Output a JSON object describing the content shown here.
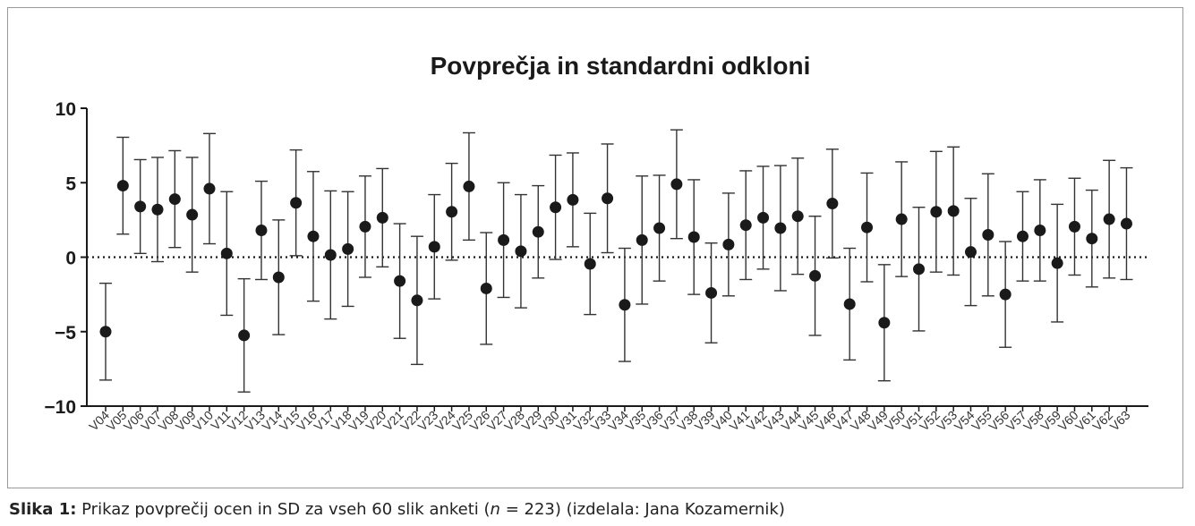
{
  "chart_data": {
    "type": "scatter",
    "subtype": "mean-with-error-bars",
    "title": "Povprečja in standardni odkloni",
    "xlabel": "",
    "ylabel": "",
    "ylim": [
      -10,
      10
    ],
    "yticks": [
      -10,
      -5,
      0,
      5,
      10
    ],
    "ytick_labels": [
      "−10",
      "−5",
      "0",
      "5",
      "10"
    ],
    "reference_line": {
      "y": 0,
      "style": "dotted"
    },
    "grid": false,
    "categories": [
      "V04",
      "V05",
      "V06",
      "V07",
      "V08",
      "V09",
      "V10",
      "V11",
      "V12",
      "V13",
      "V14",
      "V15",
      "V16",
      "V17",
      "V18",
      "V19",
      "V20",
      "V21",
      "V22",
      "V23",
      "V24",
      "V25",
      "V26",
      "V27",
      "V28",
      "V29",
      "V30",
      "V31",
      "V32",
      "V33",
      "V34",
      "V35",
      "V36",
      "V37",
      "V38",
      "V39",
      "V40",
      "V41",
      "V42",
      "V43",
      "V44",
      "V45",
      "V46",
      "V47",
      "V48",
      "V49",
      "V50",
      "V51",
      "V52",
      "V53",
      "V54",
      "V55",
      "V56",
      "V57",
      "V58",
      "V59",
      "V60",
      "V61",
      "V62",
      "V63"
    ],
    "means": [
      -5.0,
      4.8,
      3.4,
      3.2,
      3.9,
      2.85,
      4.6,
      0.25,
      -5.25,
      1.8,
      -1.35,
      3.65,
      1.4,
      0.15,
      0.55,
      2.05,
      2.65,
      -1.6,
      -2.9,
      0.7,
      3.05,
      4.75,
      -2.1,
      1.15,
      0.4,
      1.7,
      3.35,
      3.85,
      -0.45,
      3.95,
      -3.2,
      1.15,
      1.95,
      4.9,
      1.35,
      -2.4,
      0.85,
      2.15,
      2.65,
      1.95,
      2.75,
      -1.25,
      3.6,
      -3.15,
      2.0,
      -4.4,
      2.55,
      -0.8,
      3.05,
      3.1,
      0.35,
      1.5,
      -2.5,
      1.4,
      1.8,
      -0.4,
      2.05,
      1.25,
      2.55,
      2.25
    ],
    "sd": [
      3.25,
      3.25,
      3.15,
      3.5,
      3.25,
      3.85,
      3.7,
      4.15,
      3.8,
      3.3,
      3.85,
      3.55,
      4.35,
      4.3,
      3.85,
      3.4,
      3.3,
      3.85,
      4.3,
      3.5,
      3.25,
      3.6,
      3.75,
      3.85,
      3.8,
      3.1,
      3.5,
      3.15,
      3.4,
      3.65,
      3.8,
      4.3,
      3.55,
      3.65,
      3.85,
      3.35,
      3.45,
      3.65,
      3.45,
      4.2,
      3.9,
      4.0,
      3.65,
      3.75,
      3.65,
      3.9,
      3.85,
      4.15,
      4.05,
      4.3,
      3.6,
      4.1,
      3.55,
      3.0,
      3.4,
      3.95,
      3.25,
      3.25,
      3.95,
      3.75
    ],
    "marker_color": "#1a1a1a",
    "line_color": "#333333"
  },
  "caption": {
    "label": "Slika 1:",
    "text_a": " Prikaz povprečij ocen in SD za vseh 60 slik anketi (",
    "n_symbol": "n",
    "text_b": " = 223) (izdelala: Jana Kozamernik)"
  }
}
